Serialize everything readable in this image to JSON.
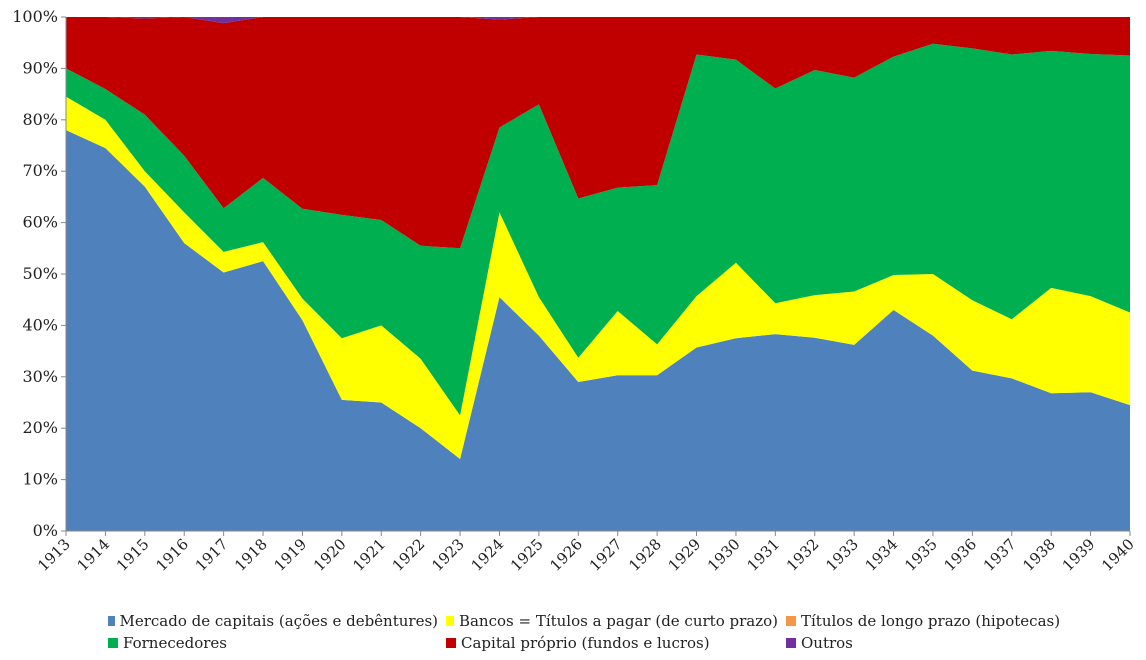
{
  "chart_data": {
    "type": "area",
    "stacking": "percent",
    "categories": [
      "1913",
      "1914",
      "1915",
      "1916",
      "1917",
      "1918",
      "1919",
      "1920",
      "1921",
      "1922",
      "1923",
      "1924",
      "1925",
      "1926",
      "1927",
      "1928",
      "1929",
      "1930",
      "1931",
      "1932",
      "1933",
      "1934",
      "1935",
      "1936",
      "1937",
      "1938",
      "1939",
      "1940"
    ],
    "ylim": [
      0,
      100
    ],
    "yticks": [
      "0%",
      "10%",
      "20%",
      "30%",
      "40%",
      "50%",
      "60%",
      "70%",
      "80%",
      "90%",
      "100%"
    ],
    "grid": false,
    "legend_position": "bottom",
    "series": [
      {
        "name": "Mercado de capitais (ações e debêntures)",
        "color": "#4F81BD",
        "values": [
          78.0,
          74.5,
          67.0,
          56.0,
          50.3,
          52.5,
          41.0,
          25.5,
          25.0,
          20.0,
          14.0,
          45.5,
          38.0,
          29.0,
          30.3,
          30.3,
          35.7,
          37.5,
          38.3,
          37.6,
          36.2,
          43.0,
          38.0,
          31.2,
          29.7,
          26.8,
          27.0,
          24.5
        ]
      },
      {
        "name": "Bancos = Títulos a pagar (de curto prazo)",
        "color": "#FFFF00",
        "values": [
          6.5,
          5.5,
          3.0,
          6.0,
          4.0,
          3.7,
          4.2,
          12.0,
          15.0,
          13.5,
          8.5,
          16.5,
          7.5,
          4.7,
          12.5,
          6.0,
          10.0,
          14.7,
          6.0,
          8.3,
          10.4,
          6.8,
          12.0,
          13.7,
          11.5,
          20.5,
          18.7,
          18.0
        ]
      },
      {
        "name": "Títulos de longo prazo (hipotecas)",
        "color": "#F79646",
        "values": [
          0,
          0,
          0,
          0,
          0,
          0,
          0,
          0,
          0,
          0,
          0,
          0,
          0,
          0,
          0,
          0,
          0,
          0,
          0,
          0,
          0,
          0,
          0,
          0,
          0,
          0,
          0,
          0
        ]
      },
      {
        "name": "Fornecedores",
        "color": "#00B050",
        "values": [
          5.5,
          6.0,
          11.0,
          11.0,
          8.5,
          12.5,
          17.5,
          24.0,
          20.5,
          22.0,
          32.5,
          16.5,
          37.5,
          31.0,
          24.0,
          31.0,
          47.0,
          39.5,
          41.8,
          43.8,
          41.6,
          42.5,
          44.8,
          49.0,
          51.5,
          46.1,
          47.1,
          50.0
        ]
      },
      {
        "name": "Capital próprio (fundos e lucros)",
        "color": "#C00000",
        "values": [
          10.0,
          14.0,
          18.7,
          27.0,
          36.0,
          31.3,
          37.3,
          38.5,
          39.5,
          44.5,
          45.0,
          21.0,
          17.0,
          35.3,
          33.2,
          32.7,
          7.3,
          8.3,
          13.9,
          10.3,
          11.8,
          7.7,
          5.2,
          6.1,
          7.3,
          6.6,
          7.2,
          7.5
        ]
      },
      {
        "name": "Outros",
        "color": "#7030A0",
        "values": [
          0,
          0,
          0.3,
          0,
          1.2,
          0,
          0,
          0,
          0,
          0,
          0,
          0.5,
          0,
          0,
          0,
          0,
          0,
          0,
          0,
          0,
          0,
          0,
          0,
          0,
          0,
          0,
          0,
          0
        ]
      }
    ]
  }
}
